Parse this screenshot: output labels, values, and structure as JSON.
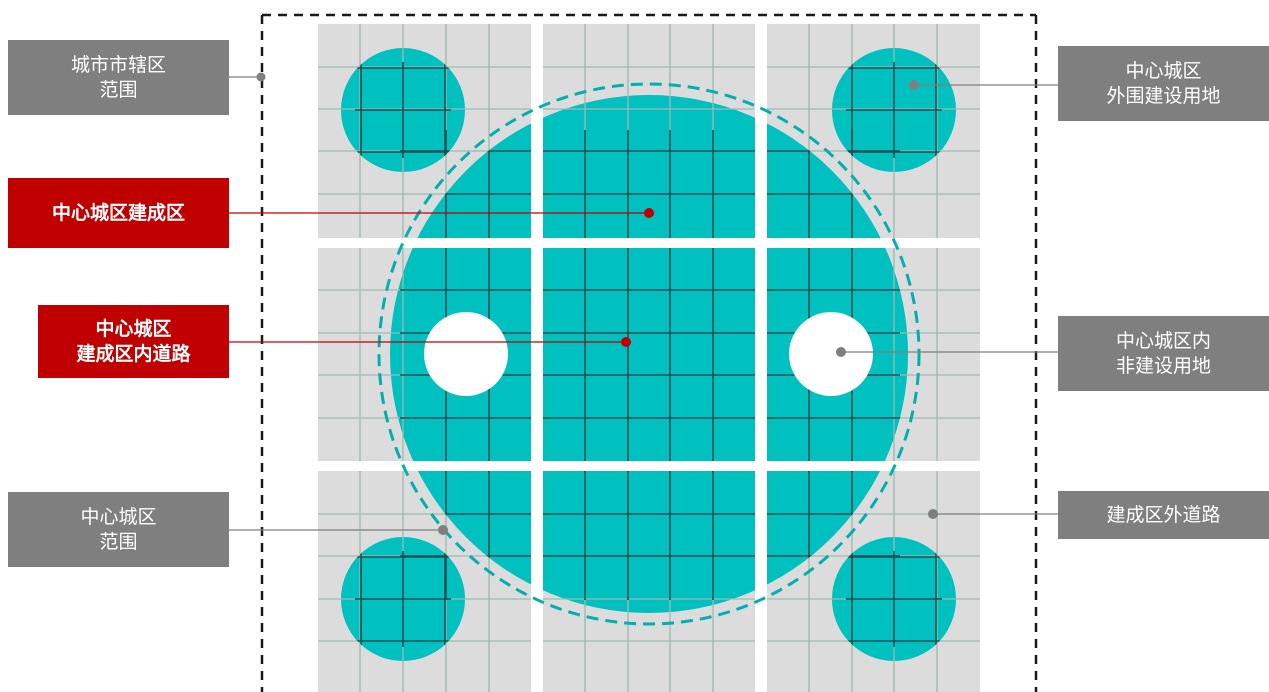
{
  "labels": {
    "city_municipal_area": "城市市辖区\n范围",
    "central_built_area": "中心城区建成区",
    "central_built_roads": "中心城区\n建成区内道路",
    "central_area_range": "中心城区\n范围",
    "central_outer_construction": "中心城区\n外围建设用地",
    "central_non_construction": "中心城区内\n非建设用地",
    "outer_roads": "建成区外道路"
  },
  "colors": {
    "label_gray": "#7f7f7f",
    "label_red": "#c00000",
    "land_gray": "#dcdcdc",
    "built_teal": "#00c0c0",
    "grid_light": "#9fb9b0",
    "grid_dark": "#1b5050",
    "road_white": "#ffffff",
    "leader_gray": "#7f7f7f",
    "leader_red": "#c00000"
  }
}
